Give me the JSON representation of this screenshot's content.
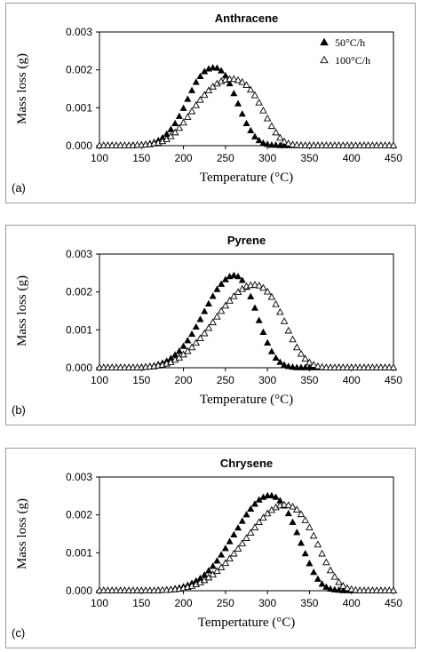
{
  "chart_data": [
    {
      "type": "scatter",
      "panel_label": "(a)",
      "title": "Anthracene",
      "xlabel": "Temperature (°C)",
      "ylabel": "Mass loss (g)",
      "xlim": [
        100,
        450
      ],
      "ylim": [
        0,
        0.003
      ],
      "x_ticks": [
        "100",
        "150",
        "200",
        "250",
        "300",
        "350",
        "400",
        "450"
      ],
      "y_ticks": [
        "0.000",
        "0.001",
        "0.002",
        "0.003"
      ],
      "grid": false,
      "legend_position": "top-right",
      "series": [
        {
          "name": "50°C/h",
          "marker": "filled-triangle",
          "x": [
            100,
            105,
            110,
            115,
            120,
            125,
            130,
            135,
            140,
            145,
            150,
            155,
            160,
            165,
            170,
            175,
            180,
            185,
            190,
            195,
            200,
            205,
            210,
            215,
            220,
            225,
            230,
            235,
            240,
            245,
            250,
            255,
            260,
            265,
            270,
            275,
            280,
            285,
            290,
            295,
            300,
            305,
            310,
            315,
            320,
            325,
            330,
            335,
            340,
            345,
            350,
            355,
            360,
            365,
            370,
            375,
            380,
            385,
            390,
            395,
            400,
            405,
            410,
            415,
            420,
            425,
            430,
            435,
            440,
            445,
            450
          ],
          "y": [
            0,
            0,
            0,
            0,
            0,
            0,
            0,
            0,
            1e-05,
            1e-05,
            2e-05,
            3e-05,
            5e-05,
            8e-05,
            0.00013,
            0.0002,
            0.0003,
            0.00042,
            0.00058,
            0.00077,
            0.00098,
            0.00122,
            0.00145,
            0.00167,
            0.00182,
            0.00195,
            0.00202,
            0.00205,
            0.00204,
            0.00197,
            0.00184,
            0.00163,
            0.00137,
            0.0011,
            0.00083,
            0.00058,
            0.00039,
            0.00023,
            0.00013,
            6e-05,
            3e-05,
            1e-05,
            1e-05,
            0,
            0,
            0,
            0,
            0,
            0,
            0,
            0,
            0,
            0,
            0,
            0,
            0,
            0,
            0,
            0,
            0,
            0,
            0,
            0,
            0,
            0,
            0,
            0,
            0,
            0,
            0,
            0
          ]
        },
        {
          "name": "100°C/h",
          "marker": "open-triangle",
          "x": [
            100,
            105,
            110,
            115,
            120,
            125,
            130,
            135,
            140,
            145,
            150,
            155,
            160,
            165,
            170,
            175,
            180,
            185,
            190,
            195,
            200,
            205,
            210,
            215,
            220,
            225,
            230,
            235,
            240,
            245,
            250,
            255,
            260,
            265,
            270,
            275,
            280,
            285,
            290,
            295,
            300,
            305,
            310,
            315,
            320,
            325,
            330,
            335,
            340,
            345,
            350,
            355,
            360,
            365,
            370,
            375,
            380,
            385,
            390,
            395,
            400,
            405,
            410,
            415,
            420,
            425,
            430,
            435,
            440,
            445,
            450
          ],
          "y": [
            0,
            0,
            0,
            0,
            0,
            0,
            0,
            0,
            0,
            1e-05,
            1e-05,
            2e-05,
            3e-05,
            5e-05,
            7e-05,
            0.00011,
            0.00016,
            0.00024,
            0.00034,
            0.00046,
            0.0006,
            0.00075,
            0.0009,
            0.00106,
            0.0012,
            0.00133,
            0.00145,
            0.00155,
            0.00163,
            0.00169,
            0.00173,
            0.00175,
            0.00175,
            0.00172,
            0.00167,
            0.00159,
            0.00147,
            0.00132,
            0.00113,
            0.00092,
            0.00071,
            0.00051,
            0.00034,
            0.0002,
            0.0001,
            5e-05,
            2e-05,
            1e-05,
            0,
            0,
            0,
            0,
            0,
            0,
            0,
            0,
            0,
            0,
            0,
            0,
            0,
            0,
            0,
            0,
            0,
            0,
            0,
            0,
            0,
            0,
            0
          ]
        }
      ]
    },
    {
      "type": "scatter",
      "panel_label": "(b)",
      "title": "Pyrene",
      "xlabel": "Temperature (°C)",
      "ylabel": "Mass loss (g)",
      "xlim": [
        100,
        450
      ],
      "ylim": [
        0,
        0.003
      ],
      "x_ticks": [
        "100",
        "150",
        "200",
        "250",
        "300",
        "350",
        "400",
        "450"
      ],
      "y_ticks": [
        "0.000",
        "0.001",
        "0.002",
        "0.003"
      ],
      "grid": false,
      "legend_position": "none",
      "series": [
        {
          "name": "",
          "marker": "filled-triangle",
          "x": [
            100,
            105,
            110,
            115,
            120,
            125,
            130,
            135,
            140,
            145,
            150,
            155,
            160,
            165,
            170,
            175,
            180,
            185,
            190,
            195,
            200,
            205,
            210,
            215,
            220,
            225,
            230,
            235,
            240,
            245,
            250,
            255,
            260,
            265,
            270,
            275,
            280,
            285,
            290,
            295,
            300,
            305,
            310,
            315,
            320,
            325,
            330,
            335,
            340,
            345,
            350,
            355,
            360,
            365,
            370,
            375,
            380,
            385,
            390,
            395,
            400,
            405,
            410,
            415,
            420,
            425,
            430,
            435,
            440,
            445,
            450
          ],
          "y": [
            0,
            0,
            0,
            0,
            0,
            0,
            0,
            0,
            0,
            0,
            1e-05,
            2e-05,
            3e-05,
            5e-05,
            8e-05,
            0.00012,
            0.00017,
            0.00024,
            0.00033,
            0.00043,
            0.00056,
            0.00071,
            0.00088,
            0.00107,
            0.00127,
            0.00148,
            0.00168,
            0.00188,
            0.00206,
            0.0022,
            0.00232,
            0.0024,
            0.00243,
            0.0024,
            0.0023,
            0.00212,
            0.00187,
            0.00157,
            0.00124,
            0.00093,
            0.00065,
            0.00042,
            0.00025,
            0.00014,
            7e-05,
            3e-05,
            1e-05,
            0,
            0,
            0,
            0,
            0,
            0,
            0,
            0,
            0,
            0,
            0,
            0,
            0,
            0,
            0,
            0,
            0,
            0,
            0,
            0,
            0,
            0,
            0,
            0
          ]
        },
        {
          "name": "",
          "marker": "open-triangle",
          "x": [
            100,
            105,
            110,
            115,
            120,
            125,
            130,
            135,
            140,
            145,
            150,
            155,
            160,
            165,
            170,
            175,
            180,
            185,
            190,
            195,
            200,
            205,
            210,
            215,
            220,
            225,
            230,
            235,
            240,
            245,
            250,
            255,
            260,
            265,
            270,
            275,
            280,
            285,
            290,
            295,
            300,
            305,
            310,
            315,
            320,
            325,
            330,
            335,
            340,
            345,
            350,
            355,
            360,
            365,
            370,
            375,
            380,
            385,
            390,
            395,
            400,
            405,
            410,
            415,
            420,
            425,
            430,
            435,
            440,
            445,
            450
          ],
          "y": [
            0,
            0,
            0,
            0,
            0,
            0,
            0,
            0,
            0,
            0,
            0,
            1e-05,
            2e-05,
            3e-05,
            5e-05,
            7e-05,
            0.0001,
            0.00014,
            0.0002,
            0.00026,
            0.00034,
            0.00043,
            0.00053,
            0.00065,
            0.00077,
            0.0009,
            0.00104,
            0.00119,
            0.00134,
            0.00149,
            0.00163,
            0.00176,
            0.00188,
            0.00199,
            0.00207,
            0.00214,
            0.00217,
            0.00218,
            0.00216,
            0.0021,
            0.002,
            0.00186,
            0.00167,
            0.00146,
            0.00122,
            0.00097,
            0.00074,
            0.00053,
            0.00036,
            0.00023,
            0.00013,
            7e-05,
            3e-05,
            1e-05,
            0,
            0,
            0,
            0,
            0,
            0,
            0,
            0,
            0,
            0,
            0,
            0,
            0,
            0,
            0,
            0,
            0
          ]
        }
      ]
    },
    {
      "type": "scatter",
      "panel_label": "(c)",
      "title": "Chrysene",
      "xlabel": "Tempertature (°C)",
      "ylabel": "Mass loss (g)",
      "xlim": [
        100,
        450
      ],
      "ylim": [
        0,
        0.003
      ],
      "x_ticks": [
        "100",
        "150",
        "200",
        "250",
        "300",
        "350",
        "400",
        "450"
      ],
      "y_ticks": [
        "0.000",
        "0.001",
        "0.002",
        "0.003"
      ],
      "grid": false,
      "legend_position": "none",
      "series": [
        {
          "name": "",
          "marker": "filled-triangle",
          "x": [
            100,
            105,
            110,
            115,
            120,
            125,
            130,
            135,
            140,
            145,
            150,
            155,
            160,
            165,
            170,
            175,
            180,
            185,
            190,
            195,
            200,
            205,
            210,
            215,
            220,
            225,
            230,
            235,
            240,
            245,
            250,
            255,
            260,
            265,
            270,
            275,
            280,
            285,
            290,
            295,
            300,
            305,
            310,
            315,
            320,
            325,
            330,
            335,
            340,
            345,
            350,
            355,
            360,
            365,
            370,
            375,
            380,
            385,
            390,
            395,
            400,
            405,
            410,
            415,
            420,
            425,
            430,
            435,
            440,
            445,
            450
          ],
          "y": [
            0,
            0,
            0,
            0,
            0,
            0,
            0,
            0,
            0,
            0,
            0,
            0,
            0,
            0,
            1e-05,
            1e-05,
            2e-05,
            3e-05,
            5e-05,
            7e-05,
            0.0001,
            0.00014,
            0.00019,
            0.00025,
            0.00032,
            0.00041,
            0.00052,
            0.00064,
            0.00078,
            0.00094,
            0.00111,
            0.00129,
            0.00147,
            0.00165,
            0.00183,
            0.002,
            0.00215,
            0.00228,
            0.00239,
            0.00246,
            0.0025,
            0.0025,
            0.00246,
            0.00237,
            0.00223,
            0.00203,
            0.0018,
            0.00153,
            0.00125,
            0.00097,
            0.00071,
            0.00048,
            0.0003,
            0.00017,
            9e-05,
            4e-05,
            2e-05,
            1e-05,
            0,
            0,
            0,
            0,
            0,
            0,
            0,
            0,
            0,
            0,
            0,
            0,
            0
          ]
        },
        {
          "name": "",
          "marker": "open-triangle",
          "x": [
            100,
            105,
            110,
            115,
            120,
            125,
            130,
            135,
            140,
            145,
            150,
            155,
            160,
            165,
            170,
            175,
            180,
            185,
            190,
            195,
            200,
            205,
            210,
            215,
            220,
            225,
            230,
            235,
            240,
            245,
            250,
            255,
            260,
            265,
            270,
            275,
            280,
            285,
            290,
            295,
            300,
            305,
            310,
            315,
            320,
            325,
            330,
            335,
            340,
            345,
            350,
            355,
            360,
            365,
            370,
            375,
            380,
            385,
            390,
            395,
            400,
            405,
            410,
            415,
            420,
            425,
            430,
            435,
            440,
            445,
            450
          ],
          "y": [
            0,
            0,
            0,
            0,
            0,
            0,
            0,
            0,
            0,
            0,
            0,
            0,
            0,
            0,
            0,
            1e-05,
            1e-05,
            2e-05,
            3e-05,
            4e-05,
            6e-05,
            9e-05,
            0.00012,
            0.00016,
            0.00021,
            0.00027,
            0.00034,
            0.00042,
            0.00051,
            0.00061,
            0.00072,
            0.00084,
            0.00097,
            0.0011,
            0.00124,
            0.00138,
            0.00152,
            0.00166,
            0.0018,
            0.00192,
            0.00203,
            0.00212,
            0.00219,
            0.00224,
            0.00226,
            0.00225,
            0.00221,
            0.00213,
            0.00201,
            0.00185,
            0.00166,
            0.00144,
            0.00121,
            0.00097,
            0.00074,
            0.00053,
            0.00036,
            0.00022,
            0.00012,
            6e-05,
            3e-05,
            1e-05,
            0,
            0,
            0,
            0,
            0,
            0,
            0,
            0,
            0
          ]
        }
      ]
    }
  ]
}
